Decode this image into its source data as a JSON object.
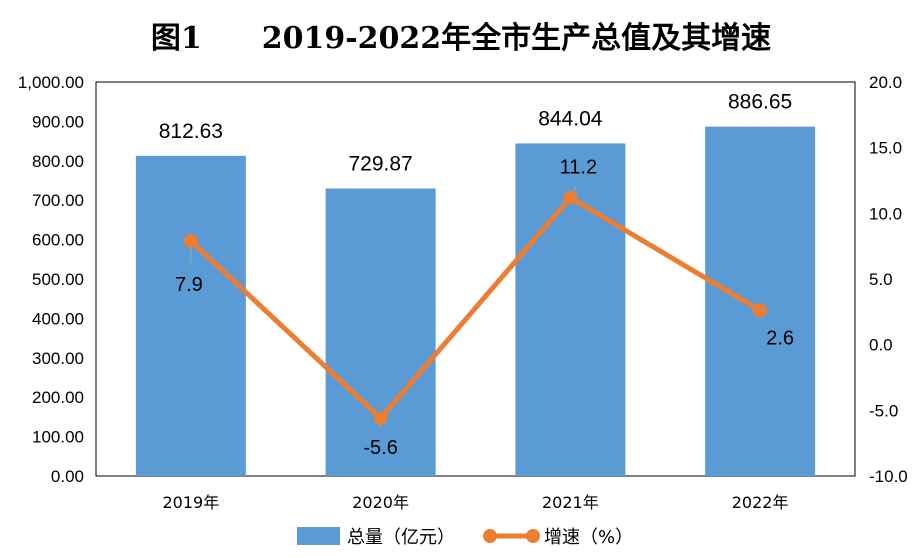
{
  "chart_data": {
    "type": "bar",
    "title": "图1　　2019-2022年全市生产总值及其增速",
    "categories": [
      "2019年",
      "2020年",
      "2021年",
      "2022年"
    ],
    "series": [
      {
        "name": "总量（亿元）",
        "type": "bar",
        "axis": "left",
        "values": [
          812.63,
          729.87,
          844.04,
          886.65
        ],
        "labels": [
          "812.63",
          "729.87",
          "844.04",
          "886.65"
        ],
        "color": "#5B9BD5"
      },
      {
        "name": "增速（%）",
        "type": "line",
        "axis": "right",
        "values": [
          7.9,
          -5.6,
          11.2,
          2.6
        ],
        "labels": [
          "7.9",
          "-5.6",
          "11.2",
          "2.6"
        ],
        "color": "#ED7D31"
      }
    ],
    "y_left": {
      "range": [
        0,
        1000
      ],
      "ticks": [
        "0.00",
        "100.00",
        "200.00",
        "300.00",
        "400.00",
        "500.00",
        "600.00",
        "700.00",
        "800.00",
        "900.00",
        "1,000.00"
      ]
    },
    "y_right": {
      "range": [
        -10,
        20
      ],
      "ticks": [
        "-10.0",
        "-5.0",
        "0.0",
        "5.0",
        "10.0",
        "15.0",
        "20.0"
      ]
    },
    "grid": false,
    "legend_position": "bottom"
  }
}
